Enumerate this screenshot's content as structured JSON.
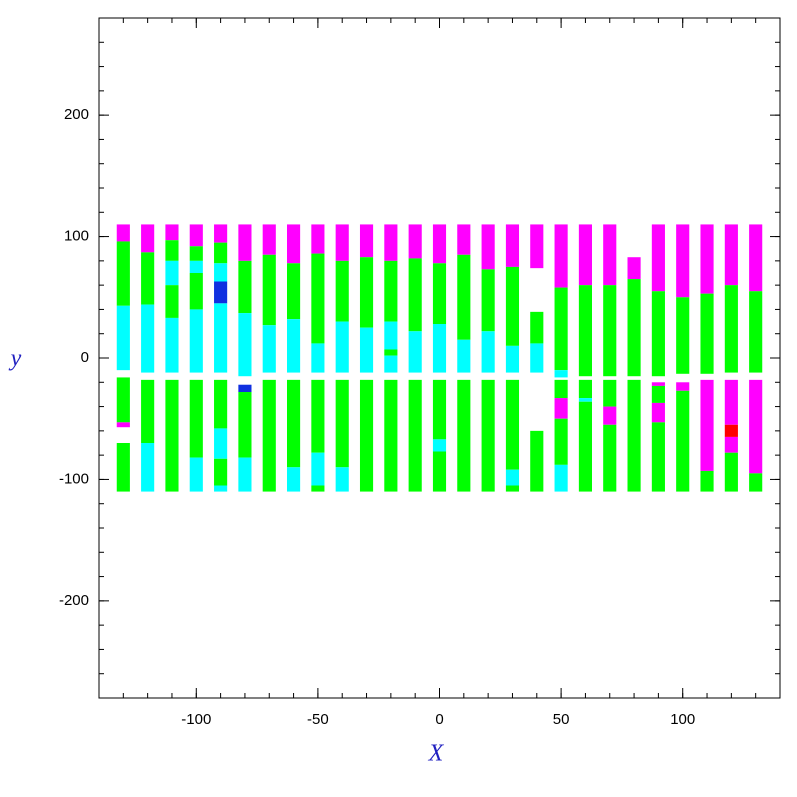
{
  "chart_data": {
    "type": "segments",
    "x_label": "X",
    "y_label": "y",
    "xlim": [
      -140,
      140
    ],
    "ylim": [
      -280,
      280
    ],
    "xticks": [
      -100,
      -50,
      0,
      50,
      100
    ],
    "yticks": [
      -200,
      -100,
      0,
      100,
      200
    ],
    "xminor_step": 10,
    "yminor_step": 20,
    "columns": [
      {
        "x": -130,
        "segments": [
          [
            110,
            96,
            "#ff00ff"
          ],
          [
            96,
            43,
            "#00ff00"
          ],
          [
            43,
            -10,
            "#00ffff"
          ],
          [
            -16,
            -53,
            "#00ff00"
          ],
          [
            -53,
            -57,
            "#ff00ff"
          ],
          [
            -70,
            -110,
            "#00ff00"
          ]
        ]
      },
      {
        "x": -120,
        "segments": [
          [
            110,
            87,
            "#ff00ff"
          ],
          [
            87,
            44,
            "#00ff00"
          ],
          [
            44,
            -12,
            "#00ffff"
          ],
          [
            -18,
            -70,
            "#00ff00"
          ],
          [
            -70,
            -110,
            "#00ffff"
          ]
        ]
      },
      {
        "x": -110,
        "segments": [
          [
            110,
            97,
            "#ff00ff"
          ],
          [
            97,
            80,
            "#00ff00"
          ],
          [
            80,
            60,
            "#00ffff"
          ],
          [
            60,
            33,
            "#00ff00"
          ],
          [
            33,
            -12,
            "#00ffff"
          ],
          [
            -18,
            -110,
            "#00ff00"
          ]
        ]
      },
      {
        "x": -100,
        "segments": [
          [
            110,
            92,
            "#ff00ff"
          ],
          [
            92,
            80,
            "#00ff00"
          ],
          [
            80,
            70,
            "#00ffff"
          ],
          [
            70,
            40,
            "#00ff00"
          ],
          [
            40,
            -12,
            "#00ffff"
          ],
          [
            -18,
            -82,
            "#00ff00"
          ],
          [
            -82,
            -110,
            "#00ffff"
          ]
        ]
      },
      {
        "x": -90,
        "segments": [
          [
            110,
            95,
            "#ff00ff"
          ],
          [
            95,
            78,
            "#00ff00"
          ],
          [
            78,
            63,
            "#00ffff"
          ],
          [
            63,
            45,
            "#1030e0"
          ],
          [
            45,
            -12,
            "#00ffff"
          ],
          [
            -18,
            -58,
            "#00ff00"
          ],
          [
            -58,
            -83,
            "#00ffff"
          ],
          [
            -83,
            -105,
            "#00ff00"
          ],
          [
            -105,
            -110,
            "#00ffff"
          ]
        ]
      },
      {
        "x": -80,
        "segments": [
          [
            110,
            80,
            "#ff00ff"
          ],
          [
            80,
            37,
            "#00ff00"
          ],
          [
            37,
            -15,
            "#00ffff"
          ],
          [
            -22,
            -28,
            "#1030e0"
          ],
          [
            -28,
            -82,
            "#00ff00"
          ],
          [
            -82,
            -110,
            "#00ffff"
          ]
        ]
      },
      {
        "x": -70,
        "segments": [
          [
            110,
            85,
            "#ff00ff"
          ],
          [
            85,
            27,
            "#00ff00"
          ],
          [
            27,
            -12,
            "#00ffff"
          ],
          [
            -18,
            -110,
            "#00ff00"
          ]
        ]
      },
      {
        "x": -60,
        "segments": [
          [
            110,
            78,
            "#ff00ff"
          ],
          [
            78,
            32,
            "#00ff00"
          ],
          [
            32,
            -12,
            "#00ffff"
          ],
          [
            -18,
            -90,
            "#00ff00"
          ],
          [
            -90,
            -110,
            "#00ffff"
          ]
        ]
      },
      {
        "x": -50,
        "segments": [
          [
            110,
            86,
            "#ff00ff"
          ],
          [
            86,
            12,
            "#00ff00"
          ],
          [
            12,
            -12,
            "#00ffff"
          ],
          [
            -18,
            -78,
            "#00ff00"
          ],
          [
            -78,
            -105,
            "#00ffff"
          ],
          [
            -105,
            -110,
            "#00ff00"
          ]
        ]
      },
      {
        "x": -40,
        "segments": [
          [
            110,
            80,
            "#ff00ff"
          ],
          [
            80,
            30,
            "#00ff00"
          ],
          [
            30,
            -12,
            "#00ffff"
          ],
          [
            -18,
            -90,
            "#00ff00"
          ],
          [
            -90,
            -110,
            "#00ffff"
          ]
        ]
      },
      {
        "x": -30,
        "segments": [
          [
            110,
            83,
            "#ff00ff"
          ],
          [
            83,
            25,
            "#00ff00"
          ],
          [
            25,
            -12,
            "#00ffff"
          ],
          [
            -18,
            -110,
            "#00ff00"
          ]
        ]
      },
      {
        "x": -20,
        "segments": [
          [
            110,
            80,
            "#ff00ff"
          ],
          [
            80,
            30,
            "#00ff00"
          ],
          [
            30,
            7,
            "#00ffff"
          ],
          [
            7,
            2,
            "#00ff00"
          ],
          [
            2,
            -12,
            "#00ffff"
          ],
          [
            -18,
            -110,
            "#00ff00"
          ]
        ]
      },
      {
        "x": -10,
        "segments": [
          [
            110,
            82,
            "#ff00ff"
          ],
          [
            82,
            22,
            "#00ff00"
          ],
          [
            22,
            -12,
            "#00ffff"
          ],
          [
            -18,
            -110,
            "#00ff00"
          ]
        ]
      },
      {
        "x": 0,
        "segments": [
          [
            110,
            78,
            "#ff00ff"
          ],
          [
            78,
            28,
            "#00ff00"
          ],
          [
            28,
            -12,
            "#00ffff"
          ],
          [
            -18,
            -67,
            "#00ff00"
          ],
          [
            -67,
            -77,
            "#00ffff"
          ],
          [
            -77,
            -110,
            "#00ff00"
          ]
        ]
      },
      {
        "x": 10,
        "segments": [
          [
            110,
            85,
            "#ff00ff"
          ],
          [
            85,
            15,
            "#00ff00"
          ],
          [
            15,
            -12,
            "#00ffff"
          ],
          [
            -18,
            -110,
            "#00ff00"
          ]
        ]
      },
      {
        "x": 20,
        "segments": [
          [
            110,
            73,
            "#ff00ff"
          ],
          [
            73,
            22,
            "#00ff00"
          ],
          [
            22,
            -12,
            "#00ffff"
          ],
          [
            -18,
            -110,
            "#00ff00"
          ]
        ]
      },
      {
        "x": 30,
        "segments": [
          [
            110,
            75,
            "#ff00ff"
          ],
          [
            75,
            10,
            "#00ff00"
          ],
          [
            10,
            -12,
            "#00ffff"
          ],
          [
            -18,
            -92,
            "#00ff00"
          ],
          [
            -92,
            -105,
            "#00ffff"
          ],
          [
            -105,
            -110,
            "#00ff00"
          ]
        ]
      },
      {
        "x": 40,
        "segments": [
          [
            110,
            74,
            "#ff00ff"
          ],
          [
            38,
            12,
            "#00ff00"
          ],
          [
            12,
            -12,
            "#00ffff"
          ],
          [
            -60,
            -110,
            "#00ff00"
          ]
        ]
      },
      {
        "x": 50,
        "segments": [
          [
            110,
            58,
            "#ff00ff"
          ],
          [
            58,
            -10,
            "#00ff00"
          ],
          [
            -10,
            -16,
            "#00ffff"
          ],
          [
            -18,
            -33,
            "#00ff00"
          ],
          [
            -33,
            -50,
            "#ff00ff"
          ],
          [
            -50,
            -88,
            "#00ff00"
          ],
          [
            -88,
            -110,
            "#00ffff"
          ]
        ]
      },
      {
        "x": 60,
        "segments": [
          [
            110,
            60,
            "#ff00ff"
          ],
          [
            60,
            -15,
            "#00ff00"
          ],
          [
            -18,
            -33,
            "#00ff00"
          ],
          [
            -33,
            -36,
            "#00ffff"
          ],
          [
            -36,
            -110,
            "#00ff00"
          ]
        ]
      },
      {
        "x": 70,
        "segments": [
          [
            110,
            60,
            "#ff00ff"
          ],
          [
            60,
            -15,
            "#00ff00"
          ],
          [
            -18,
            -40,
            "#00ff00"
          ],
          [
            -40,
            -55,
            "#ff00ff"
          ],
          [
            -55,
            -110,
            "#00ff00"
          ]
        ]
      },
      {
        "x": 80,
        "segments": [
          [
            83,
            65,
            "#ff00ff"
          ],
          [
            65,
            -15,
            "#00ff00"
          ],
          [
            -18,
            -110,
            "#00ff00"
          ]
        ]
      },
      {
        "x": 90,
        "segments": [
          [
            110,
            55,
            "#ff00ff"
          ],
          [
            55,
            -15,
            "#00ff00"
          ],
          [
            -20,
            -23,
            "#ff00ff"
          ],
          [
            -23,
            -37,
            "#00ff00"
          ],
          [
            -37,
            -53,
            "#ff00ff"
          ],
          [
            -53,
            -110,
            "#00ff00"
          ]
        ]
      },
      {
        "x": 100,
        "segments": [
          [
            110,
            50,
            "#ff00ff"
          ],
          [
            50,
            -13,
            "#00ff00"
          ],
          [
            -20,
            -27,
            "#ff00ff"
          ],
          [
            -27,
            -110,
            "#00ff00"
          ]
        ]
      },
      {
        "x": 110,
        "segments": [
          [
            110,
            53,
            "#ff00ff"
          ],
          [
            53,
            -13,
            "#00ff00"
          ],
          [
            -18,
            -93,
            "#ff00ff"
          ],
          [
            -93,
            -110,
            "#00ff00"
          ]
        ]
      },
      {
        "x": 120,
        "segments": [
          [
            110,
            60,
            "#ff00ff"
          ],
          [
            60,
            -12,
            "#00ff00"
          ],
          [
            -18,
            -55,
            "#ff00ff"
          ],
          [
            -55,
            -65,
            "#ff0000"
          ],
          [
            -65,
            -78,
            "#ff00ff"
          ],
          [
            -78,
            -110,
            "#00ff00"
          ]
        ]
      },
      {
        "x": 130,
        "segments": [
          [
            110,
            55,
            "#ff00ff"
          ],
          [
            55,
            -12,
            "#00ff00"
          ],
          [
            -18,
            -95,
            "#ff00ff"
          ],
          [
            -95,
            -110,
            "#00ff00"
          ]
        ]
      }
    ]
  }
}
